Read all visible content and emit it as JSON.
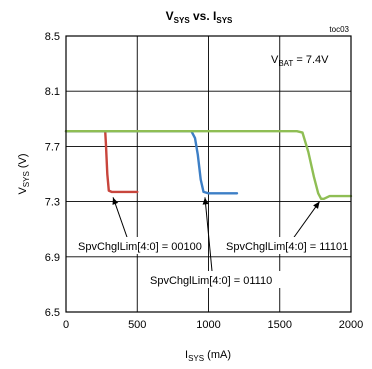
{
  "chart_data": {
    "type": "line",
    "title": "VSYS vs. ISYS",
    "title_parts": {
      "v": "V",
      "v_sub": "SYS",
      "mid": " vs. ",
      "i": "I",
      "i_sub": "SYS"
    },
    "tag": "toc03",
    "xlabel": {
      "main": "I",
      "sub": "SYS",
      "unit": " (mA)"
    },
    "ylabel": {
      "main": "V",
      "sub": "SYS",
      "unit": " (V)"
    },
    "xlim": [
      0,
      2000
    ],
    "ylim": [
      6.5,
      8.5
    ],
    "x_ticks": [
      "0",
      "500",
      "1000",
      "1500",
      "2000"
    ],
    "y_ticks": [
      "6.5",
      "6.9",
      "7.3",
      "7.7",
      "8.1",
      "8.5"
    ],
    "grid": true,
    "annotation_vbat": {
      "main": "V",
      "sub": "BAT",
      "rest": " = 7.4V"
    },
    "series": [
      {
        "label": "SpvChglLim[4:0] = 00100",
        "color": "#c8453c",
        "x": [
          0,
          275,
          280,
          290,
          300,
          320,
          360,
          400,
          450,
          500
        ],
        "y": [
          7.81,
          7.81,
          7.72,
          7.5,
          7.38,
          7.37,
          7.37,
          7.37,
          7.37,
          7.37
        ]
      },
      {
        "label": "SpvChglLim[4:0] = 01110",
        "color": "#3d7fc6",
        "x": [
          0,
          880,
          905,
          925,
          945,
          965,
          1000,
          1050,
          1100,
          1150,
          1200
        ],
        "y": [
          7.81,
          7.81,
          7.76,
          7.64,
          7.46,
          7.37,
          7.36,
          7.36,
          7.36,
          7.36,
          7.36
        ]
      },
      {
        "label": "SpvChglLim[4:0] = 11101",
        "color": "#8fbe54",
        "x": [
          0,
          1620,
          1660,
          1700,
          1740,
          1770,
          1790,
          1810,
          1850,
          1900,
          1950,
          2000
        ],
        "y": [
          7.81,
          7.81,
          7.8,
          7.66,
          7.48,
          7.36,
          7.32,
          7.32,
          7.34,
          7.34,
          7.34,
          7.34
        ]
      }
    ],
    "labels": [
      {
        "text": "SpvChglLim[4:0] = 00100",
        "point_x": 330,
        "point_y": 7.36
      },
      {
        "text": "SpvChglLim[4:0] = 01110",
        "point_x": 975,
        "point_y": 7.36
      },
      {
        "text": "SpvChglLim[4:0] = 11101",
        "point_x": 1780,
        "point_y": 7.33
      }
    ]
  }
}
